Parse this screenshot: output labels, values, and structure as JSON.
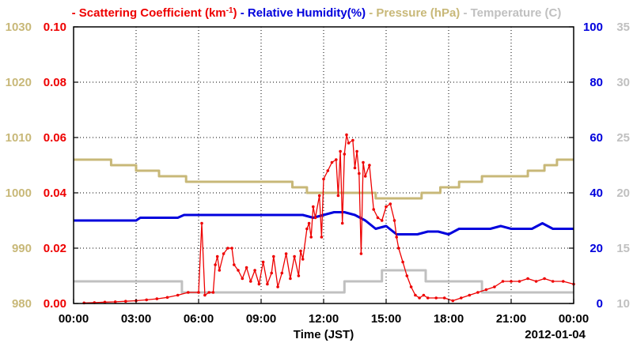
{
  "chart_data": {
    "type": "line",
    "date_label": "2012-01-04",
    "xlabel": "Time (JST)",
    "x_ticks": [
      "00:00",
      "03:00",
      "06:00",
      "09:00",
      "12:00",
      "15:00",
      "18:00",
      "21:00",
      "00:00"
    ],
    "x_range_hours": [
      0,
      24
    ],
    "grid": true,
    "colors": {
      "scattering": "#ee0000",
      "humidity": "#0000dd",
      "pressure": "#c8b878",
      "temperature": "#c0c0c0"
    },
    "axes": {
      "pressure": {
        "side": "left-outer",
        "range": [
          980,
          1030
        ],
        "ticks": [
          "980",
          "990",
          "1000",
          "1010",
          "1020",
          "1030"
        ]
      },
      "scattering": {
        "side": "left-inner",
        "range": [
          0,
          0.1
        ],
        "ticks": [
          "0.00",
          "0.02",
          "0.04",
          "0.06",
          "0.08",
          "0.10"
        ]
      },
      "humidity": {
        "side": "right-inner",
        "range": [
          0,
          100
        ],
        "ticks": [
          "0",
          "20",
          "40",
          "60",
          "80",
          "100"
        ]
      },
      "temperature": {
        "side": "right-outer",
        "range": [
          10,
          35
        ],
        "ticks": [
          "10",
          "15",
          "20",
          "25",
          "30",
          "35"
        ]
      }
    },
    "legend": [
      {
        "key": "scattering",
        "dash": "-",
        "name": "Scattering Coefficient (km",
        "sup": "-1",
        "tail": ")"
      },
      {
        "key": "humidity",
        "dash": "-",
        "name": "Relative Humidity(%)"
      },
      {
        "key": "pressure",
        "dash": "-",
        "name": "Pressure (hPa)"
      },
      {
        "key": "temperature",
        "dash": "-",
        "name": "Temperature (",
        "tail": "C)"
      }
    ],
    "series": [
      {
        "name": "Scattering Coefficient",
        "axis": "scattering",
        "points": [
          [
            0.5,
            0.0002
          ],
          [
            1,
            0.0003
          ],
          [
            1.5,
            0.0005
          ],
          [
            2,
            0.0006
          ],
          [
            2.5,
            0.0008
          ],
          [
            3,
            0.001
          ],
          [
            3.5,
            0.0013
          ],
          [
            4,
            0.0017
          ],
          [
            4.5,
            0.0022
          ],
          [
            5,
            0.003
          ],
          [
            5.5,
            0.004
          ],
          [
            6,
            0.004
          ],
          [
            6.15,
            0.029
          ],
          [
            6.3,
            0.003
          ],
          [
            6.5,
            0.004
          ],
          [
            6.7,
            0.004
          ],
          [
            6.8,
            0.014
          ],
          [
            6.9,
            0.017
          ],
          [
            7,
            0.012
          ],
          [
            7.2,
            0.018
          ],
          [
            7.4,
            0.02
          ],
          [
            7.6,
            0.02
          ],
          [
            7.7,
            0.014
          ],
          [
            7.9,
            0.012
          ],
          [
            8.1,
            0.009
          ],
          [
            8.3,
            0.013
          ],
          [
            8.5,
            0.008
          ],
          [
            8.7,
            0.012
          ],
          [
            8.9,
            0.007
          ],
          [
            9.1,
            0.015
          ],
          [
            9.3,
            0.007
          ],
          [
            9.5,
            0.011
          ],
          [
            9.6,
            0.017
          ],
          [
            9.8,
            0.006
          ],
          [
            10,
            0.011
          ],
          [
            10.2,
            0.018
          ],
          [
            10.4,
            0.009
          ],
          [
            10.6,
            0.017
          ],
          [
            10.8,
            0.01
          ],
          [
            10.9,
            0.019
          ],
          [
            11,
            0.016
          ],
          [
            11.2,
            0.027
          ],
          [
            11.3,
            0.029
          ],
          [
            11.4,
            0.024
          ],
          [
            11.5,
            0.035
          ],
          [
            11.6,
            0.031
          ],
          [
            11.8,
            0.039
          ],
          [
            11.9,
            0.024
          ],
          [
            12,
            0.045
          ],
          [
            12.2,
            0.048
          ],
          [
            12.4,
            0.051
          ],
          [
            12.6,
            0.052
          ],
          [
            12.7,
            0.039
          ],
          [
            12.8,
            0.055
          ],
          [
            12.9,
            0.029
          ],
          [
            13,
            0.054
          ],
          [
            13.1,
            0.061
          ],
          [
            13.2,
            0.058
          ],
          [
            13.4,
            0.059
          ],
          [
            13.5,
            0.049
          ],
          [
            13.6,
            0.055
          ],
          [
            13.7,
            0.047
          ],
          [
            13.8,
            0.018
          ],
          [
            13.9,
            0.051
          ],
          [
            14,
            0.046
          ],
          [
            14.2,
            0.05
          ],
          [
            14.4,
            0.034
          ],
          [
            14.6,
            0.031
          ],
          [
            14.8,
            0.03
          ],
          [
            15,
            0.035
          ],
          [
            15.2,
            0.036
          ],
          [
            15.4,
            0.03
          ],
          [
            15.5,
            0.024
          ],
          [
            15.6,
            0.02
          ],
          [
            15.8,
            0.015
          ],
          [
            16,
            0.01
          ],
          [
            16.2,
            0.006
          ],
          [
            16.4,
            0.003
          ],
          [
            16.6,
            0.002
          ],
          [
            16.8,
            0.003
          ],
          [
            17,
            0.002
          ],
          [
            17.4,
            0.002
          ],
          [
            17.8,
            0.002
          ],
          [
            18.2,
            0.001
          ],
          [
            18.6,
            0.002
          ],
          [
            19,
            0.003
          ],
          [
            19.4,
            0.004
          ],
          [
            19.8,
            0.005
          ],
          [
            20.2,
            0.006
          ],
          [
            20.6,
            0.008
          ],
          [
            21,
            0.008
          ],
          [
            21.4,
            0.008
          ],
          [
            21.8,
            0.009
          ],
          [
            22.2,
            0.008
          ],
          [
            22.6,
            0.009
          ],
          [
            23,
            0.008
          ],
          [
            23.5,
            0.008
          ],
          [
            24,
            0.007
          ]
        ]
      },
      {
        "name": "Relative Humidity",
        "axis": "humidity",
        "points": [
          [
            0,
            30
          ],
          [
            1,
            30
          ],
          [
            2,
            30
          ],
          [
            3,
            30
          ],
          [
            3.2,
            31
          ],
          [
            5,
            31
          ],
          [
            5.3,
            32
          ],
          [
            8,
            32
          ],
          [
            8.3,
            32
          ],
          [
            11,
            32
          ],
          [
            11.5,
            31
          ],
          [
            12,
            32
          ],
          [
            12.5,
            33
          ],
          [
            13,
            33
          ],
          [
            13.5,
            32
          ],
          [
            14,
            30
          ],
          [
            14.5,
            27
          ],
          [
            15,
            28
          ],
          [
            15.5,
            25
          ],
          [
            16,
            25
          ],
          [
            16.5,
            25
          ],
          [
            17,
            26
          ],
          [
            17.5,
            26
          ],
          [
            18,
            25
          ],
          [
            18.5,
            27
          ],
          [
            20,
            27
          ],
          [
            20.5,
            28
          ],
          [
            21,
            27
          ],
          [
            22,
            27
          ],
          [
            22.5,
            29
          ],
          [
            23,
            27
          ],
          [
            24,
            27
          ]
        ]
      },
      {
        "name": "Pressure",
        "axis": "pressure",
        "points": [
          [
            0,
            1006
          ],
          [
            1.8,
            1006
          ],
          [
            1.8,
            1005
          ],
          [
            3,
            1005
          ],
          [
            3,
            1004
          ],
          [
            4.1,
            1004
          ],
          [
            4.1,
            1003
          ],
          [
            5.4,
            1003
          ],
          [
            5.4,
            1002
          ],
          [
            10.5,
            1002
          ],
          [
            10.5,
            1001
          ],
          [
            11.2,
            1001
          ],
          [
            11.2,
            1000
          ],
          [
            14.5,
            1000
          ],
          [
            14.5,
            999
          ],
          [
            16.7,
            999
          ],
          [
            16.7,
            1000
          ],
          [
            17.6,
            1000
          ],
          [
            17.6,
            1001
          ],
          [
            18.5,
            1001
          ],
          [
            18.5,
            1002
          ],
          [
            19.6,
            1002
          ],
          [
            19.6,
            1003
          ],
          [
            21.8,
            1003
          ],
          [
            21.8,
            1004
          ],
          [
            22.6,
            1004
          ],
          [
            22.6,
            1005
          ],
          [
            23.2,
            1005
          ],
          [
            23.2,
            1006
          ],
          [
            24,
            1006
          ]
        ]
      },
      {
        "name": "Temperature",
        "axis": "temperature",
        "points": [
          [
            0,
            12
          ],
          [
            5.2,
            12
          ],
          [
            5.2,
            11
          ],
          [
            13,
            11
          ],
          [
            13,
            12
          ],
          [
            14.8,
            12
          ],
          [
            14.8,
            13
          ],
          [
            16.9,
            13
          ],
          [
            16.9,
            12
          ],
          [
            19.6,
            12
          ],
          [
            19.6,
            11
          ],
          [
            24,
            11
          ]
        ]
      }
    ]
  }
}
